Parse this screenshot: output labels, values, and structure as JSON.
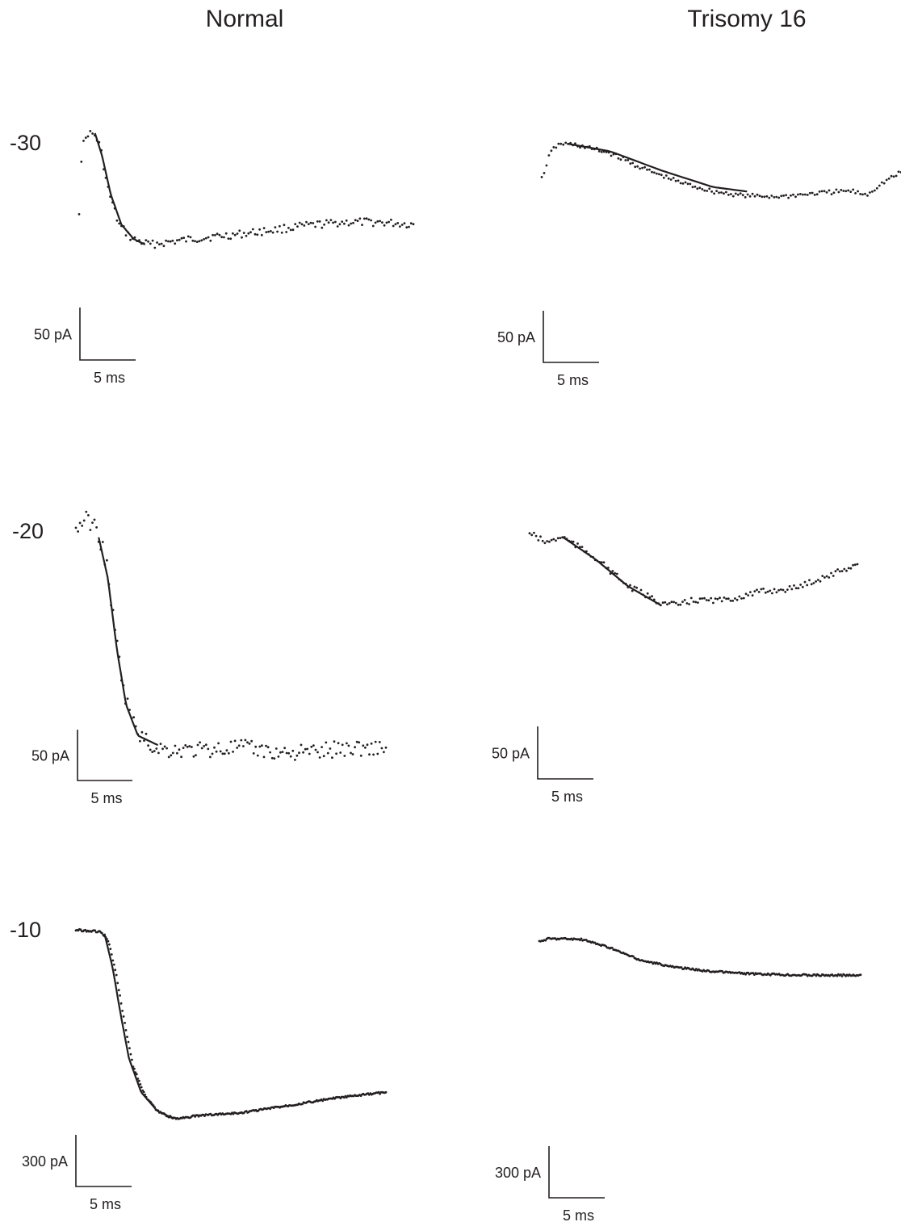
{
  "columns": [
    "Normal",
    "Trisomy 16"
  ],
  "rows": [
    "-30",
    "-20",
    "-10"
  ],
  "colors": {
    "ink": "#231f20",
    "background": "#ffffff"
  },
  "chart_data": [
    {
      "type": "scatter",
      "column": "Normal",
      "row": "-30",
      "title": "",
      "scale_bars": {
        "current": "50 pA",
        "time": "5 ms"
      },
      "trace_shape": [
        [
          0,
          0.7
        ],
        [
          0.3,
          0.14
        ],
        [
          1,
          0.0
        ],
        [
          1.8,
          0.02
        ],
        [
          2.4,
          0.12
        ],
        [
          3.2,
          0.48
        ],
        [
          4.5,
          0.82
        ],
        [
          6,
          0.95
        ],
        [
          8,
          1.0
        ],
        [
          10,
          0.98
        ],
        [
          14,
          0.94
        ],
        [
          18,
          0.91
        ],
        [
          22,
          0.87
        ],
        [
          26,
          0.83
        ],
        [
          30,
          0.8
        ],
        [
          34,
          0.8
        ],
        [
          38,
          0.82
        ]
      ],
      "fit_shape": [
        [
          1.8,
          0.0
        ],
        [
          2.6,
          0.2
        ],
        [
          3.6,
          0.55
        ],
        [
          4.8,
          0.82
        ],
        [
          6.2,
          0.95
        ],
        [
          7.5,
          1.0
        ]
      ]
    },
    {
      "type": "scatter",
      "column": "Trisomy 16",
      "row": "-30",
      "title": "",
      "scale_bars": {
        "current": "50 pA",
        "time": "5 ms"
      },
      "trace_shape": [
        [
          0,
          0.55
        ],
        [
          1,
          0.15
        ],
        [
          1.6,
          0.05
        ],
        [
          2.2,
          0.0
        ],
        [
          4,
          0.02
        ],
        [
          8,
          0.15
        ],
        [
          12,
          0.4
        ],
        [
          16,
          0.6
        ],
        [
          20,
          0.75
        ],
        [
          24,
          0.82
        ],
        [
          28,
          0.83
        ],
        [
          32,
          0.78
        ],
        [
          36,
          0.74
        ],
        [
          38,
          0.8
        ],
        [
          40,
          0.6
        ],
        [
          42,
          0.45
        ]
      ],
      "fit_shape": [
        [
          3,
          0.0
        ],
        [
          8,
          0.12
        ],
        [
          14,
          0.42
        ],
        [
          20,
          0.68
        ],
        [
          24,
          0.75
        ]
      ]
    },
    {
      "type": "scatter",
      "column": "Normal",
      "row": "-20",
      "title": "",
      "scale_bars": {
        "current": "50 pA",
        "time": "5 ms"
      },
      "trace_shape": [
        [
          0,
          0.05
        ],
        [
          1,
          0.0
        ],
        [
          2,
          0.03
        ],
        [
          2.6,
          0.08
        ],
        [
          3.4,
          0.2
        ],
        [
          4.2,
          0.45
        ],
        [
          5.2,
          0.72
        ],
        [
          6.5,
          0.88
        ],
        [
          8,
          0.95
        ],
        [
          10,
          0.97
        ],
        [
          14,
          0.97
        ],
        [
          18,
          0.96
        ],
        [
          22,
          0.98
        ],
        [
          26,
          0.98
        ],
        [
          30,
          0.96
        ],
        [
          34,
          0.96
        ]
      ],
      "fit_shape": [
        [
          2.5,
          0.08
        ],
        [
          3.5,
          0.25
        ],
        [
          4.5,
          0.55
        ],
        [
          5.5,
          0.78
        ],
        [
          6.8,
          0.91
        ],
        [
          9,
          0.95
        ]
      ]
    },
    {
      "type": "scatter",
      "column": "Trisomy 16",
      "row": "-20",
      "title": "",
      "scale_bars": {
        "current": "50 pA",
        "time": "5 ms"
      },
      "trace_shape": [
        [
          0,
          0.0
        ],
        [
          2,
          0.12
        ],
        [
          4,
          0.05
        ],
        [
          8,
          0.3
        ],
        [
          12,
          0.65
        ],
        [
          16,
          0.85
        ],
        [
          18,
          0.88
        ],
        [
          20,
          0.82
        ],
        [
          24,
          0.82
        ],
        [
          28,
          0.72
        ],
        [
          32,
          0.68
        ],
        [
          36,
          0.54
        ],
        [
          40,
          0.38
        ]
      ],
      "fit_shape": [
        [
          4,
          0.05
        ],
        [
          8,
          0.32
        ],
        [
          12,
          0.65
        ],
        [
          16,
          0.88
        ]
      ]
    },
    {
      "type": "scatter",
      "column": "Normal",
      "row": "-10",
      "title": "",
      "scale_bars": {
        "current": "300 pA",
        "time": "5 ms"
      },
      "trace_shape": [
        [
          0,
          0.0
        ],
        [
          3,
          0.01
        ],
        [
          4,
          0.06
        ],
        [
          5,
          0.25
        ],
        [
          6,
          0.5
        ],
        [
          7,
          0.72
        ],
        [
          8.5,
          0.88
        ],
        [
          10,
          0.96
        ],
        [
          12,
          1.0
        ],
        [
          16,
          0.98
        ],
        [
          20,
          0.97
        ],
        [
          26,
          0.93
        ],
        [
          32,
          0.89
        ],
        [
          38,
          0.86
        ]
      ],
      "fit_shape": [
        [
          3.5,
          0.02
        ],
        [
          4.5,
          0.2
        ],
        [
          5.5,
          0.45
        ],
        [
          6.5,
          0.68
        ],
        [
          8,
          0.86
        ],
        [
          10,
          0.96
        ],
        [
          12,
          1.0
        ]
      ]
    },
    {
      "type": "scatter",
      "column": "Trisomy 16",
      "row": "-10",
      "title": "",
      "scale_bars": {
        "current": "300 pA",
        "time": "5 ms"
      },
      "trace_shape": [
        [
          0,
          0.08
        ],
        [
          1,
          0.0
        ],
        [
          3,
          0.0
        ],
        [
          5,
          0.02
        ],
        [
          8,
          0.2
        ],
        [
          12,
          0.55
        ],
        [
          16,
          0.72
        ],
        [
          20,
          0.82
        ],
        [
          26,
          0.9
        ],
        [
          32,
          0.92
        ],
        [
          38,
          0.93
        ]
      ],
      "fit_shape": []
    }
  ]
}
